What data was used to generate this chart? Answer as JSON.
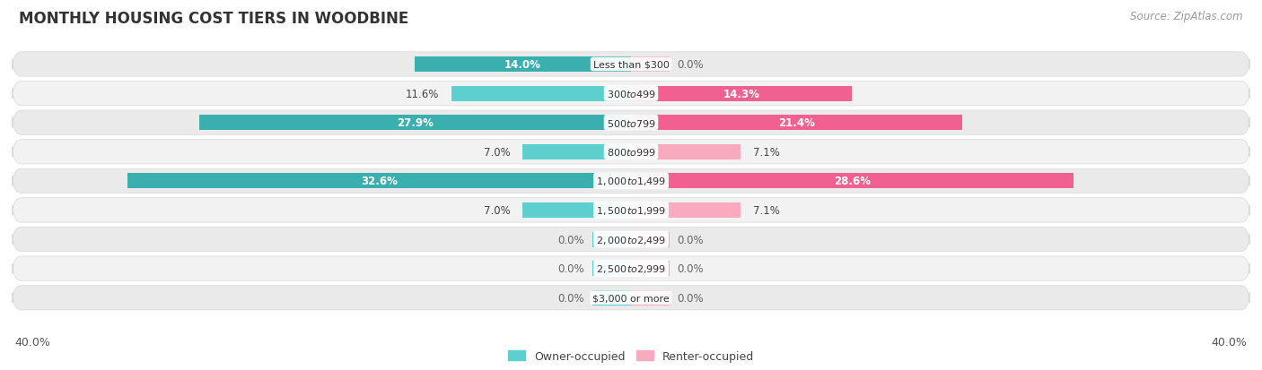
{
  "title": "MONTHLY HOUSING COST TIERS IN WOODBINE",
  "source": "Source: ZipAtlas.com",
  "categories": [
    "Less than $300",
    "$300 to $499",
    "$500 to $799",
    "$800 to $999",
    "$1,000 to $1,499",
    "$1,500 to $1,999",
    "$2,000 to $2,499",
    "$2,500 to $2,999",
    "$3,000 or more"
  ],
  "owner_values": [
    14.0,
    11.6,
    27.9,
    7.0,
    32.6,
    7.0,
    0.0,
    0.0,
    0.0
  ],
  "renter_values": [
    0.0,
    14.3,
    21.4,
    7.1,
    28.6,
    7.1,
    0.0,
    0.0,
    0.0
  ],
  "owner_color_bright": "#5ECFCF",
  "owner_color_dark": "#3AAFAF",
  "renter_color_bright": "#F9AABF",
  "renter_color_dark": "#F06090",
  "row_bg_color": "#EFEFEF",
  "row_border_color": "#DDDDDD",
  "axis_limit": 40.0,
  "bar_height": 0.52,
  "stub_size": 2.5,
  "inside_label_threshold": 12.0,
  "title_fontsize": 12,
  "source_fontsize": 8.5,
  "value_fontsize": 8.5,
  "category_fontsize": 8,
  "legend_fontsize": 9,
  "axis_label_fontsize": 9
}
